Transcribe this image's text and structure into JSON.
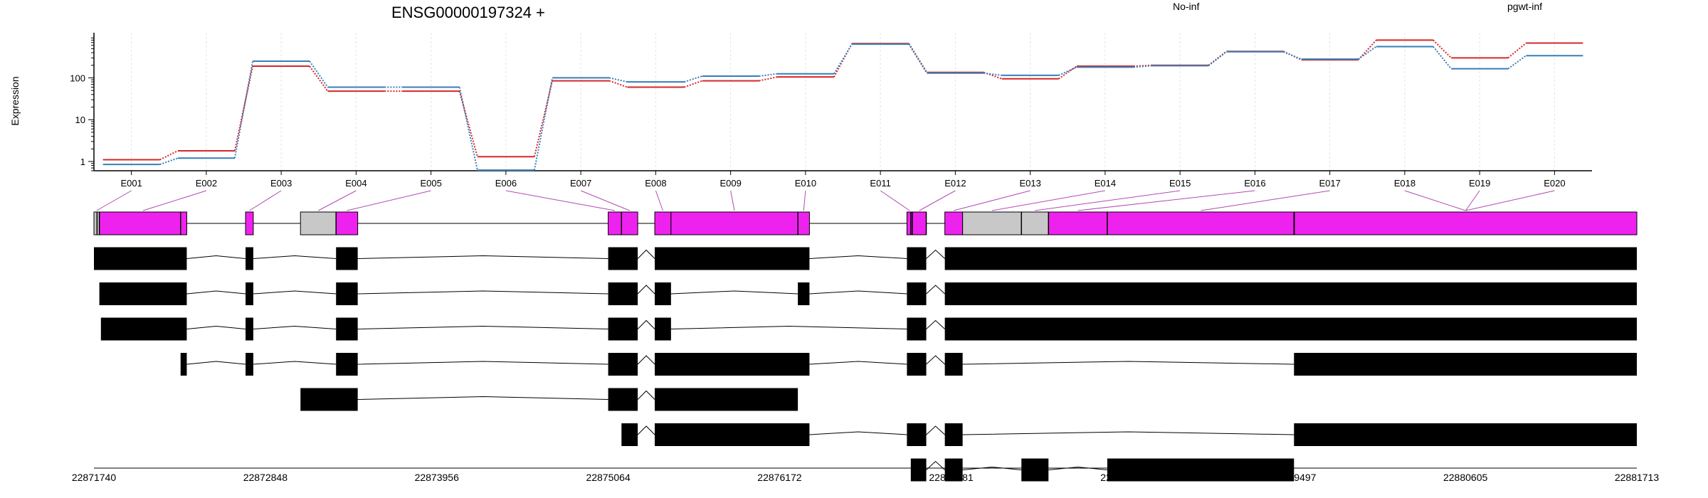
{
  "chart_data": {
    "type": "line",
    "title": "ENSG00000197324 +",
    "ylabel": "Expression",
    "yscale": "log",
    "ylim": [
      0.6,
      1200
    ],
    "ytick_labels": [
      "1",
      "10",
      "100"
    ],
    "ytick_values": [
      1,
      10,
      100
    ],
    "categories": [
      "E001",
      "E002",
      "E003",
      "E004",
      "E005",
      "E006",
      "E007",
      "E008",
      "E009",
      "E010",
      "E011",
      "E012",
      "E013",
      "E014",
      "E015",
      "E016",
      "E017",
      "E018",
      "E019",
      "E020"
    ],
    "series": [
      {
        "name": "No-inf",
        "color": "#d62728",
        "values": [
          1.1,
          1.8,
          190,
          48,
          48,
          1.3,
          85,
          60,
          85,
          105,
          660,
          135,
          95,
          190,
          200,
          430,
          270,
          800,
          300,
          680
        ]
      },
      {
        "name": "pgwt-inf",
        "color": "#377eb8",
        "values": [
          0.85,
          1.2,
          250,
          60,
          60,
          0.62,
          100,
          80,
          110,
          125,
          640,
          130,
          115,
          180,
          195,
          420,
          280,
          560,
          165,
          340
        ]
      }
    ],
    "grid": "vertical",
    "legend_position": "top-right",
    "gene_model": {
      "exon_label_color": "#b34ab3",
      "exon_color": "#ee22ee",
      "intron_color": "#c8c8c8",
      "transcript_color": "#000000",
      "coordinates": [
        "22871740",
        "22872848",
        "22873956",
        "22875064",
        "22876172",
        "22877281",
        "22878389",
        "22879497",
        "22880605",
        "22881713"
      ],
      "coordinate_range": [
        22871740,
        22881713
      ],
      "exon_bins": [
        {
          "label": "E001",
          "start": 22871740,
          "end": 22871775,
          "counted": false
        },
        {
          "label": "E002",
          "start": 22871775,
          "end": 22872340,
          "counted": true
        },
        {
          "label": "E003",
          "start": 22872720,
          "end": 22872770,
          "counted": true
        },
        {
          "label": "E004",
          "start": 22873075,
          "end": 22873305,
          "counted": false
        },
        {
          "label": "E005",
          "start": 22873305,
          "end": 22873445,
          "counted": true
        },
        {
          "label": "E006",
          "start": 22875064,
          "end": 22875150,
          "counted": true
        },
        {
          "label": "E007",
          "start": 22875150,
          "end": 22875255,
          "counted": true
        },
        {
          "label": "E008",
          "start": 22875365,
          "end": 22875470,
          "counted": true
        },
        {
          "label": "E009",
          "start": 22875470,
          "end": 22876290,
          "counted": true
        },
        {
          "label": "E010",
          "start": 22876290,
          "end": 22876365,
          "counted": true
        },
        {
          "label": "E011",
          "start": 22876995,
          "end": 22877030,
          "counted": true
        },
        {
          "label": "E012",
          "start": 22877030,
          "end": 22877120,
          "counted": true
        },
        {
          "label": "E013",
          "start": 22877240,
          "end": 22877355,
          "counted": true
        },
        {
          "label": "E014",
          "start": 22877355,
          "end": 22877735,
          "counted": false
        },
        {
          "label": "E015",
          "start": 22877735,
          "end": 22877910,
          "counted": false
        },
        {
          "label": "E016",
          "start": 22877910,
          "end": 22878290,
          "counted": true
        },
        {
          "label": "E017",
          "start": 22878290,
          "end": 22879500,
          "counted": true
        },
        {
          "label": "E018",
          "start": 22879500,
          "end": 22881713,
          "counted": true
        },
        {
          "label": "E019",
          "start": 22879500,
          "end": 22881713,
          "counted": true
        },
        {
          "label": "E020",
          "start": 22879500,
          "end": 22881713,
          "counted": true
        }
      ],
      "bin_markers": [
        22871760,
        22871775,
        22872300,
        22873305,
        22875150,
        22876290,
        22877020,
        22877030,
        22877120,
        22877735,
        22877910,
        22878290,
        22879497
      ],
      "transcripts": [
        [
          [
            22871740,
            22872340
          ],
          [
            22872720,
            22872770
          ],
          [
            22873305,
            22873445
          ],
          [
            22875064,
            22875255
          ],
          [
            22875365,
            22876365
          ],
          [
            22876995,
            22877120
          ],
          [
            22877240,
            22881713
          ]
        ],
        [
          [
            22871775,
            22872340
          ],
          [
            22872720,
            22872770
          ],
          [
            22873305,
            22873445
          ],
          [
            22875064,
            22875255
          ],
          [
            22875365,
            22875470
          ],
          [
            22876290,
            22876365
          ],
          [
            22876995,
            22877120
          ],
          [
            22877240,
            22881713
          ]
        ],
        [
          [
            22871785,
            22872340
          ],
          [
            22872720,
            22872770
          ],
          [
            22873305,
            22873445
          ],
          [
            22875064,
            22875255
          ],
          [
            22875365,
            22875470
          ],
          [
            22876995,
            22877120
          ],
          [
            22877240,
            22881713
          ]
        ],
        [
          [
            22872300,
            22872340
          ],
          [
            22872720,
            22872770
          ],
          [
            22873305,
            22873445
          ],
          [
            22875064,
            22875255
          ],
          [
            22875365,
            22876365
          ],
          [
            22876995,
            22877120
          ],
          [
            22877240,
            22877355
          ],
          [
            22879497,
            22881713
          ]
        ],
        [
          [
            22873075,
            22873445
          ],
          [
            22875064,
            22875255
          ],
          [
            22875365,
            22876290
          ]
        ],
        [
          [
            22875150,
            22875255
          ],
          [
            22875365,
            22876365
          ],
          [
            22876995,
            22877120
          ],
          [
            22877240,
            22877355
          ],
          [
            22879497,
            22881713
          ]
        ],
        [
          [
            22877020,
            22877120
          ],
          [
            22877240,
            22877355
          ],
          [
            22877735,
            22877910
          ],
          [
            22878290,
            22879497
          ]
        ]
      ]
    }
  }
}
